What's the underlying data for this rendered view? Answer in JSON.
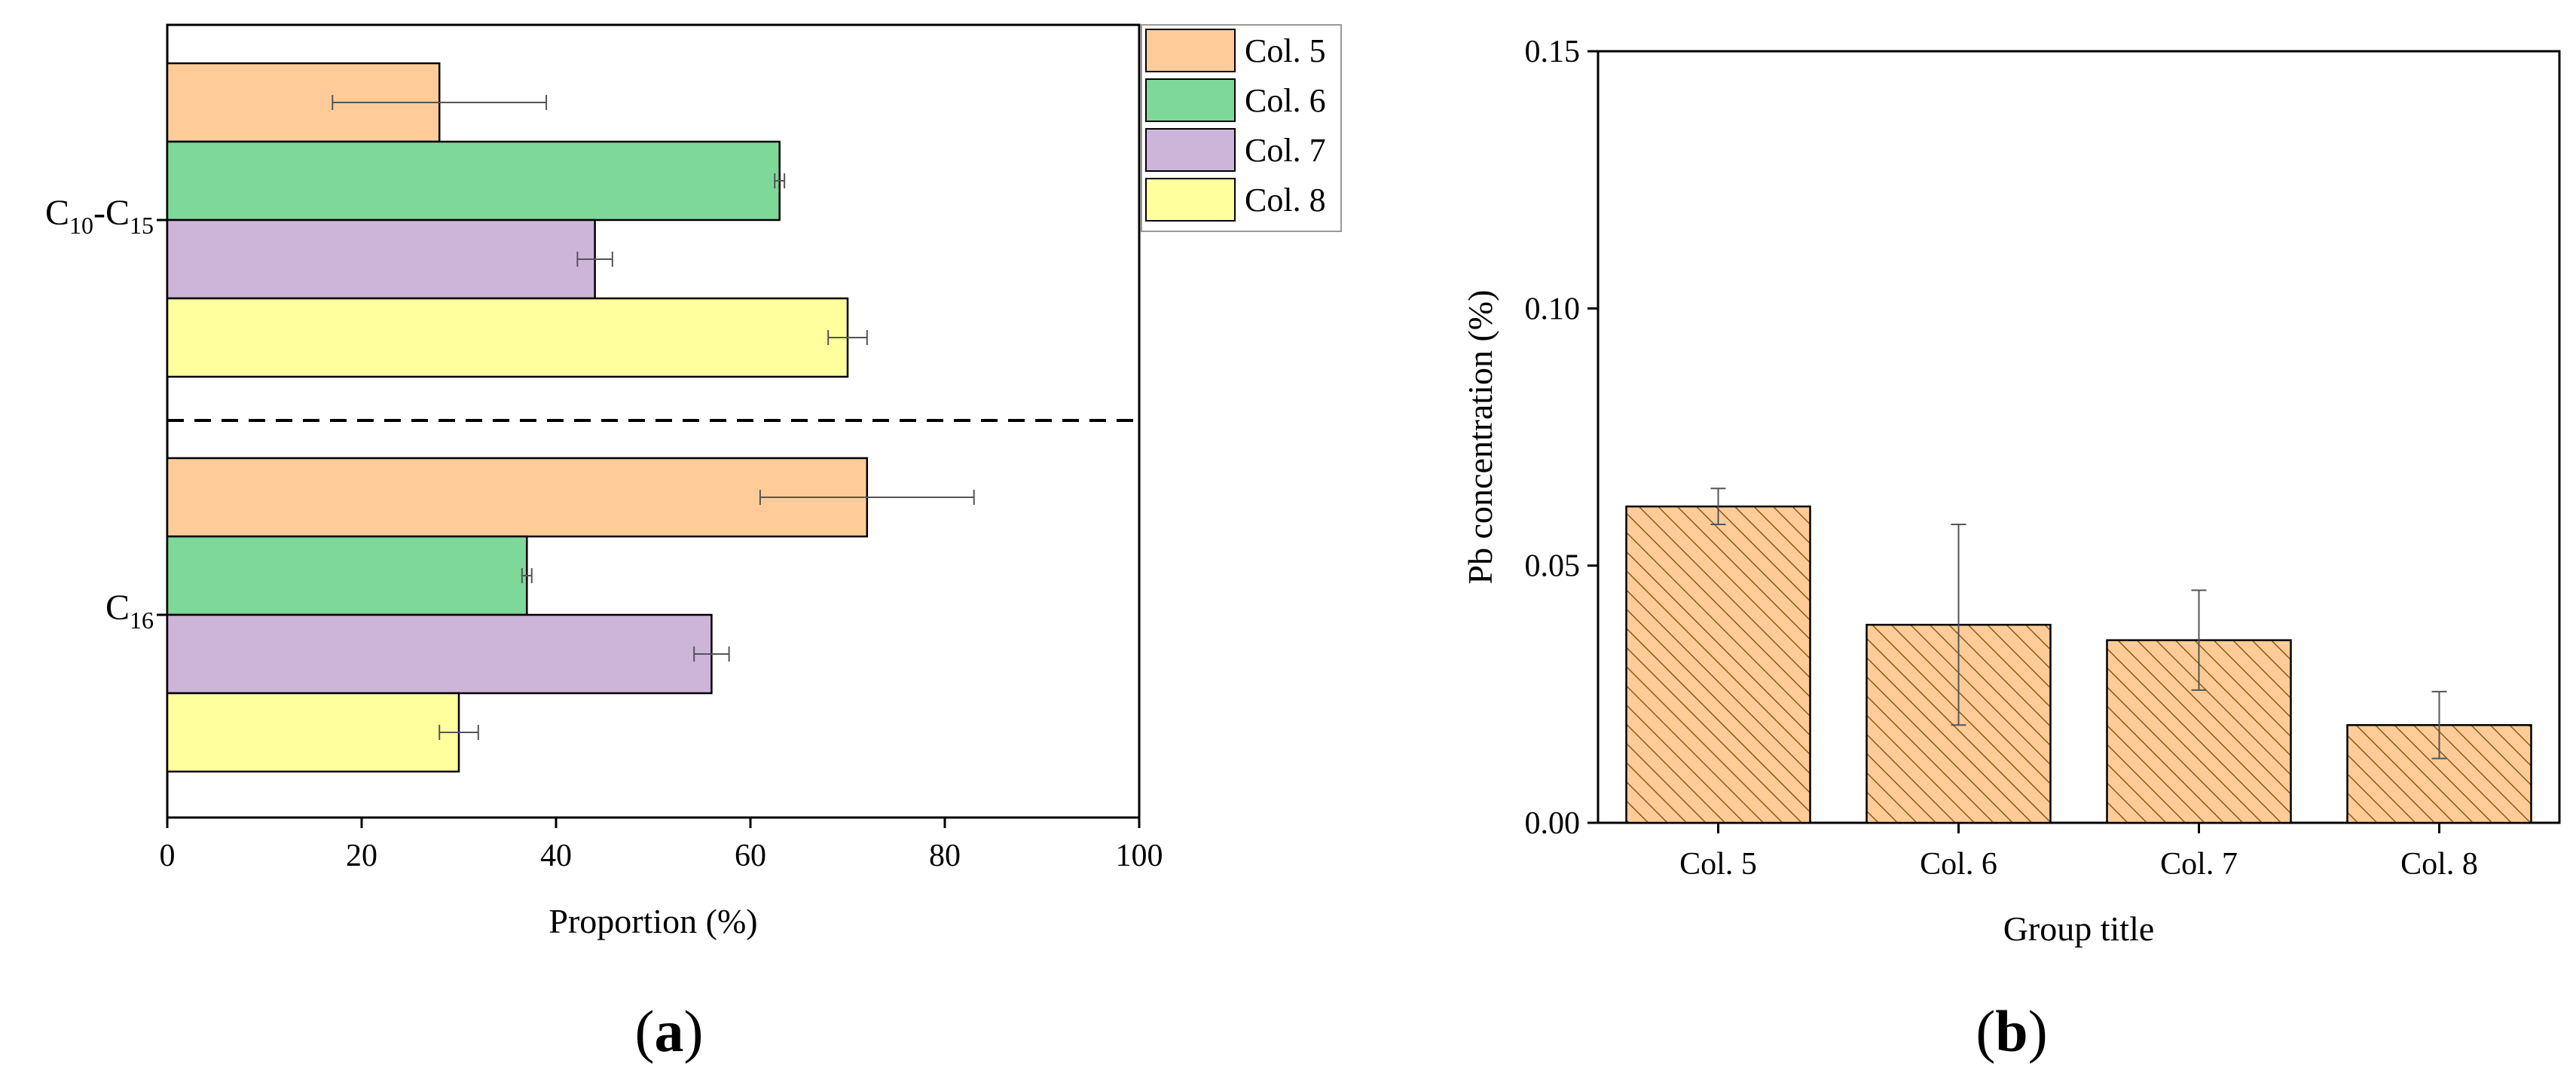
{
  "panels": {
    "a": {
      "label": "a"
    },
    "b": {
      "label": "b"
    }
  },
  "chart_data": [
    {
      "id": "a",
      "type": "bar",
      "orientation": "horizontal",
      "title": "",
      "xlabel": "Proportion (%)",
      "ylabel": "",
      "xlim": [
        0,
        100
      ],
      "xticks": [
        0,
        20,
        40,
        60,
        80,
        100
      ],
      "categories": [
        "C10-C15",
        "C16"
      ],
      "category_labels": [
        {
          "parts": [
            {
              "t": "C"
            },
            {
              "t": "10",
              "sub": true
            },
            {
              "t": "-C"
            },
            {
              "t": "15",
              "sub": true
            }
          ]
        },
        {
          "parts": [
            {
              "t": "C"
            },
            {
              "t": "16",
              "sub": true
            }
          ]
        }
      ],
      "series": [
        {
          "name": "Col. 5",
          "color": "#FFCC99",
          "values": [
            28,
            72
          ],
          "errors": [
            11,
            11
          ]
        },
        {
          "name": "Col. 6",
          "color": "#7ED89A",
          "values": [
            63,
            37
          ],
          "errors": [
            0.5,
            0.5
          ]
        },
        {
          "name": "Col. 7",
          "color": "#CDB5DA",
          "values": [
            44,
            56
          ],
          "errors": [
            1.8,
            1.8
          ]
        },
        {
          "name": "Col. 8",
          "color": "#FFFF9E",
          "values": [
            70,
            30
          ],
          "errors": [
            2,
            2
          ]
        }
      ],
      "legend": {
        "position": "top-right-outside"
      },
      "separator": "dashed line between categories",
      "grid": false
    },
    {
      "id": "b",
      "type": "bar",
      "orientation": "vertical",
      "title": "",
      "xlabel": "Group title",
      "ylabel": "Pb concentration (%)",
      "ylim": [
        0,
        0.15
      ],
      "yticks": [
        "0.00",
        "0.05",
        "0.10",
        "0.15"
      ],
      "categories": [
        "Col. 5",
        "Col. 6",
        "Col. 7",
        "Col. 8"
      ],
      "values": [
        0.0615,
        0.0385,
        0.0355,
        0.019
      ],
      "errors": [
        0.0035,
        0.0195,
        0.0097,
        0.0065
      ],
      "bar_color": "#FFCC99",
      "hatch_color": "#8B5A14",
      "pattern": "diagonal hatch",
      "grid": false
    }
  ]
}
